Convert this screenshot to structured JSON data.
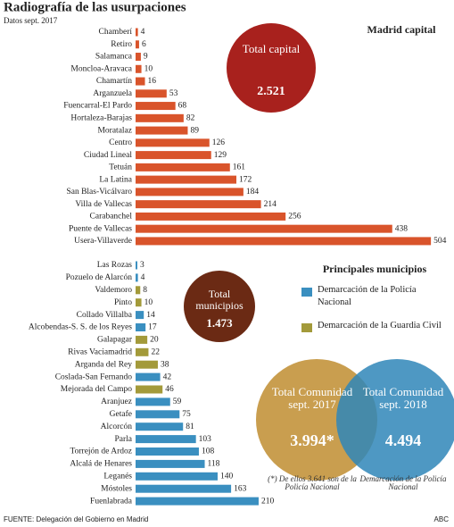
{
  "title": "Radiografía de las usurpaciones",
  "subtitle": "Datos sept. 2017",
  "chart_data": [
    {
      "type": "bar",
      "title": "Madrid capital",
      "color": "#d9542b",
      "categories": [
        "Chamberí",
        "Retiro",
        "Salamanca",
        "Moncloa-Aravaca",
        "Chamartín",
        "Arganzuela",
        "Fuencarral-El Pardo",
        "Hortaleza-Barajas",
        "Moratalaz",
        "Centro",
        "Ciudad Lineal",
        "Tetuán",
        "La Latina",
        "San Blas-Vicálvaro",
        "Villa de Vallecas",
        "Carabanchel",
        "Puente de Vallecas",
        "Usera-Villaverde"
      ],
      "values": [
        4,
        6,
        9,
        10,
        16,
        53,
        68,
        82,
        89,
        126,
        129,
        161,
        172,
        184,
        214,
        256,
        438,
        504
      ]
    },
    {
      "type": "bar",
      "title": "Principales municipios",
      "categories": [
        "Las Rozas",
        "Pozuelo de Alarcón",
        "Valdemoro",
        "Pinto",
        "Collado Villalba",
        "Alcobendas-S. S. de los Reyes",
        "Galapagar",
        "Rivas Vaciamadrid",
        "Arganda del Rey",
        "Coslada-San Fernando",
        "Mejorada del Campo",
        "Aranjuez",
        "Getafe",
        "Alcorcón",
        "Parla",
        "Torrejón de Ardoz",
        "Alcalá de Henares",
        "Leganés",
        "Móstoles",
        "Fuenlabrada"
      ],
      "series": [
        {
          "name": "Demarcación de la Policía Nacional",
          "color": "#3a8fc0",
          "values": [
            3,
            4,
            null,
            null,
            14,
            17,
            null,
            null,
            null,
            42,
            null,
            59,
            75,
            81,
            103,
            108,
            118,
            140,
            163,
            210
          ]
        },
        {
          "name": "Demarcación de la Guardia Civil",
          "color": "#a39a3a",
          "values": [
            null,
            null,
            8,
            10,
            null,
            null,
            20,
            22,
            38,
            null,
            46,
            null,
            null,
            null,
            null,
            null,
            null,
            null,
            null,
            null
          ]
        }
      ]
    }
  ],
  "callouts": [
    {
      "label": "Total capital",
      "value": "2.521",
      "color": "#a8211d"
    },
    {
      "label": "Total municipios",
      "value": "1.473",
      "color": "#6b2a14"
    },
    {
      "label": "Total Comunidad sept. 2017",
      "value": "3.994*",
      "color": "#c99e4f",
      "note": "(*) De ellos 3.641 son de la Policía Nacional"
    },
    {
      "label": "Total Comunidad sept. 2018",
      "value": "4.494",
      "color": "#2f86b9",
      "note": "Demarcación de la Policía Nacional"
    }
  ],
  "source": "FUENTE: Delegación del Gobierno en Madrid",
  "credit": "ABC"
}
